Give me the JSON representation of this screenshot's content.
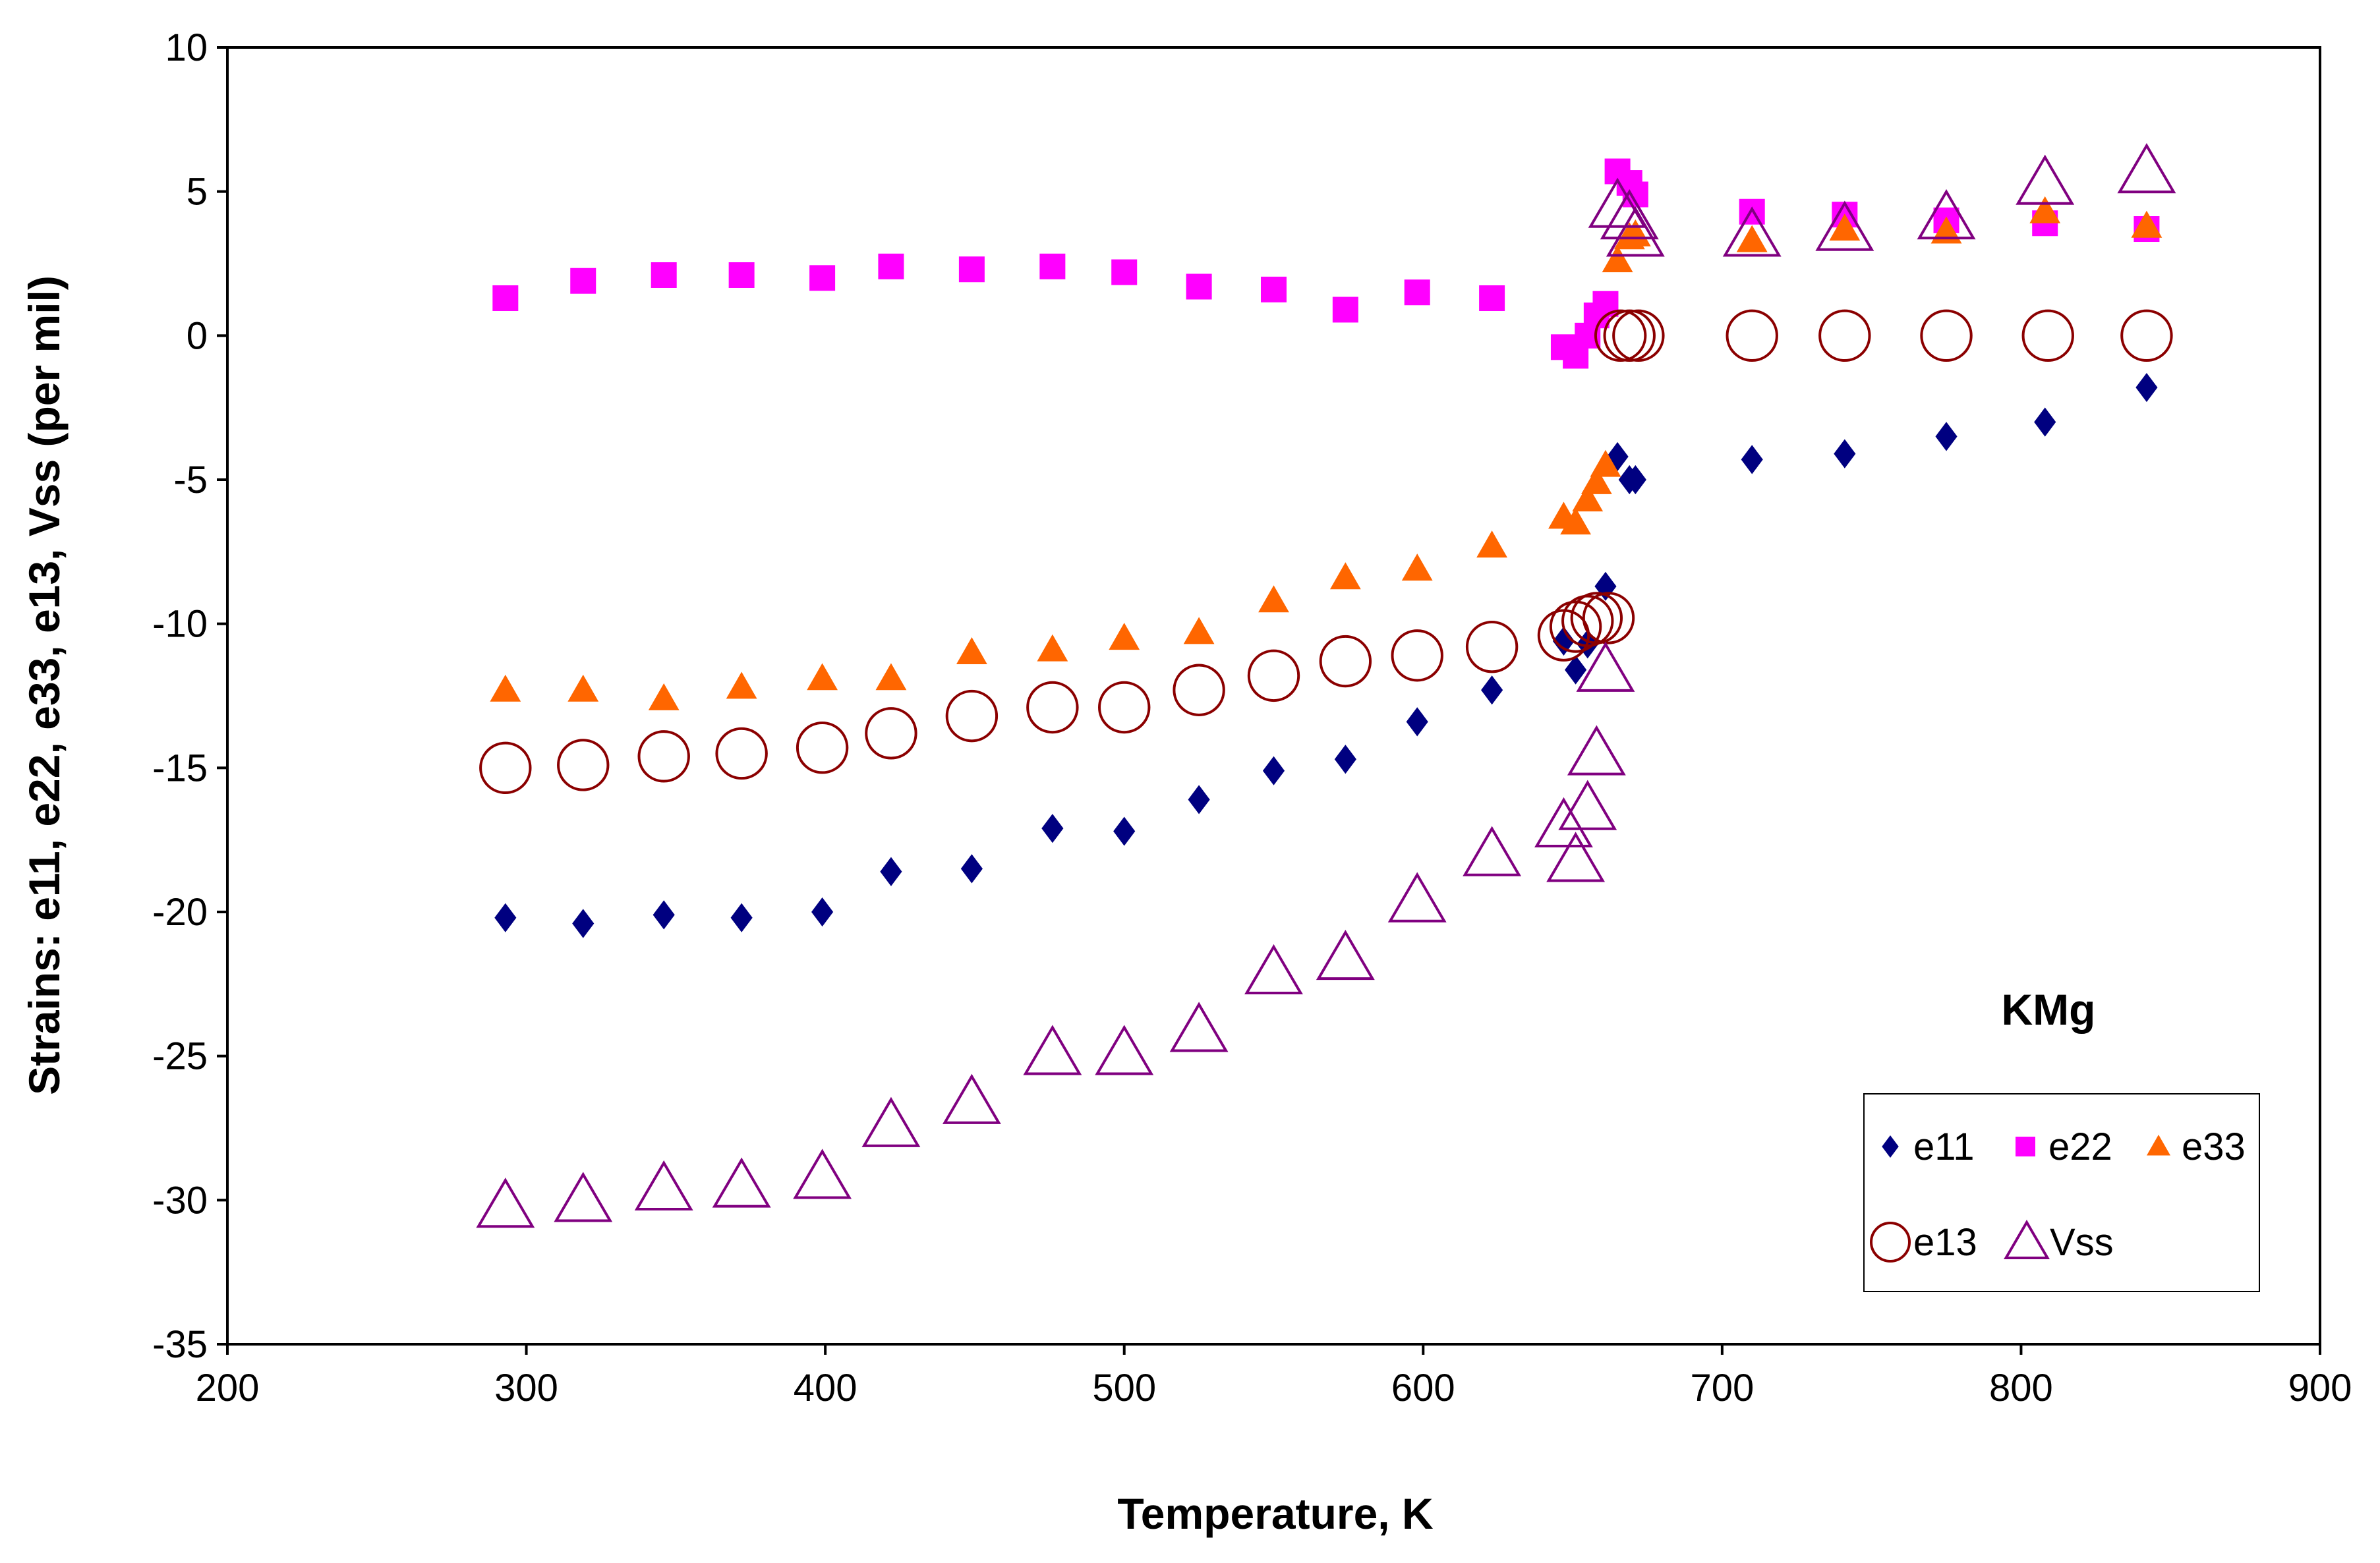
{
  "chart_data": {
    "type": "scatter",
    "title": "",
    "xlabel": "Temperature, K",
    "ylabel": "Strains: e11, e22, e33, e13, Vss  (per mil)",
    "xlim": [
      200,
      900
    ],
    "ylim": [
      -35,
      10
    ],
    "xticks": [
      200,
      300,
      400,
      500,
      600,
      700,
      800,
      900
    ],
    "yticks": [
      -35,
      -30,
      -25,
      -20,
      -15,
      -10,
      -5,
      0,
      5,
      10
    ],
    "x_tick_labels": [
      "200",
      "300",
      "400",
      "500",
      "600",
      "700",
      "800",
      "900"
    ],
    "y_tick_labels": [
      "-35",
      "-30",
      "-25",
      "-20",
      "-15",
      "-10",
      "-5",
      "0",
      "5",
      "10"
    ],
    "grid": false,
    "annotation": "KMg",
    "legend_position": "bottom-right",
    "series": [
      {
        "name": "e11",
        "label": "e11",
        "marker": "diamond",
        "color": "#000080",
        "x": [
          293,
          319,
          346,
          372,
          399,
          422,
          449,
          476,
          500,
          525,
          550,
          574,
          598,
          623,
          647,
          651,
          655,
          661,
          665,
          669,
          671,
          710,
          741,
          775,
          808,
          842
        ],
        "y": [
          -20.2,
          -20.4,
          -20.1,
          -20.2,
          -20.0,
          -18.6,
          -18.5,
          -17.1,
          -17.2,
          -16.1,
          -15.1,
          -14.7,
          -13.4,
          -12.3,
          -10.6,
          -11.6,
          -10.7,
          -8.7,
          -4.2,
          -5.0,
          -5.0,
          -4.3,
          -4.1,
          -3.5,
          -3.0,
          -1.8
        ]
      },
      {
        "name": "e22",
        "label": "e22",
        "marker": "square",
        "color": "#FF00FF",
        "x": [
          293,
          319,
          346,
          372,
          399,
          422,
          449,
          476,
          500,
          525,
          550,
          574,
          598,
          623,
          647,
          651,
          655,
          658,
          661,
          665,
          669,
          671,
          710,
          741,
          775,
          808,
          842
        ],
        "y": [
          1.3,
          1.9,
          2.1,
          2.1,
          2.0,
          2.4,
          2.3,
          2.4,
          2.2,
          1.7,
          1.6,
          0.9,
          1.5,
          1.3,
          -0.4,
          -0.7,
          0.0,
          0.7,
          1.1,
          5.7,
          5.3,
          4.9,
          4.3,
          4.2,
          4.0,
          3.9,
          3.7
        ]
      },
      {
        "name": "e33",
        "label": "e33",
        "marker": "triangle",
        "color": "#FF6600",
        "x": [
          293,
          319,
          346,
          372,
          399,
          422,
          449,
          476,
          500,
          525,
          550,
          574,
          598,
          623,
          647,
          651,
          655,
          658,
          661,
          665,
          669,
          671,
          710,
          741,
          775,
          808,
          842
        ],
        "y": [
          -12.3,
          -12.3,
          -12.6,
          -12.2,
          -11.9,
          -11.9,
          -11.0,
          -10.9,
          -10.5,
          -10.3,
          -9.2,
          -8.4,
          -8.1,
          -7.3,
          -6.3,
          -6.5,
          -5.7,
          -5.1,
          -4.5,
          2.6,
          3.4,
          3.5,
          3.3,
          3.7,
          3.6,
          4.3,
          3.8
        ]
      },
      {
        "name": "e13",
        "label": "e13",
        "marker": "circle",
        "color": "#8B0000",
        "x": [
          293,
          319,
          346,
          372,
          399,
          422,
          449,
          476,
          500,
          525,
          550,
          574,
          598,
          623,
          647,
          651,
          655,
          658,
          662,
          666,
          669,
          672,
          710,
          741,
          775,
          809,
          842
        ],
        "y": [
          -15.0,
          -14.9,
          -14.6,
          -14.5,
          -14.3,
          -13.8,
          -13.2,
          -12.9,
          -12.9,
          -12.3,
          -11.8,
          -11.3,
          -11.1,
          -10.8,
          -10.4,
          -10.1,
          -9.9,
          -9.8,
          -9.8,
          0.0,
          0.0,
          0.0,
          0.0,
          0.0,
          0.0,
          0.0,
          0.0
        ]
      },
      {
        "name": "Vss",
        "label": "Vss",
        "marker": "open-triangle",
        "color": "#800080",
        "x": [
          293,
          319,
          346,
          372,
          399,
          422,
          449,
          476,
          500,
          525,
          550,
          574,
          598,
          623,
          647,
          651,
          655,
          658,
          661,
          665,
          669,
          671,
          710,
          741,
          775,
          808,
          842
        ],
        "y": [
          -30.2,
          -30.0,
          -29.6,
          -29.5,
          -29.2,
          -27.4,
          -26.6,
          -24.9,
          -24.9,
          -24.1,
          -22.1,
          -21.6,
          -19.6,
          -18.0,
          -17.0,
          -18.2,
          -16.4,
          -14.5,
          -11.6,
          4.5,
          4.1,
          3.5,
          3.5,
          3.7,
          4.1,
          5.3,
          5.7
        ]
      }
    ]
  }
}
